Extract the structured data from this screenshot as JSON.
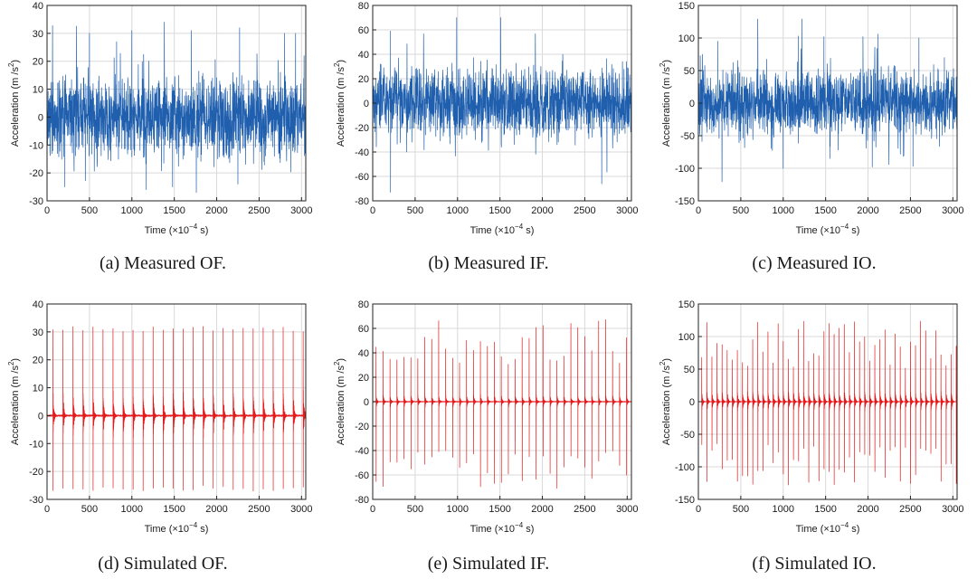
{
  "charts_meta": {
    "xlabel": "Time",
    "xunit_prefix": "(×10",
    "xunit_exp": "−4",
    "xunit_suffix": " s)",
    "ylabel_main": "Acceleration  (m /s",
    "ylabel_sup": "2",
    "ylabel_end": ")",
    "colors": {
      "measured": "#1f5fae",
      "simulated": "#e41a1c",
      "grid": "#d9d9d9",
      "axis": "#222222"
    }
  },
  "chart_data": [
    {
      "type": "line",
      "id": "measured-of",
      "title": "(a) Measured OF.",
      "series": [
        {
          "name": "Measured OF",
          "signal": "random-vibration",
          "envelope": 10,
          "spikes": [
            {
              "x": 500,
              "y": 30
            },
            {
              "x": 820,
              "y": 27
            },
            {
              "x": 1000,
              "y": 31
            },
            {
              "x": 1170,
              "y": -26
            },
            {
              "x": 1700,
              "y": 31
            },
            {
              "x": 1760,
              "y": -27
            },
            {
              "x": 2270,
              "y": 32
            },
            {
              "x": 2800,
              "y": 30
            },
            {
              "x": 2930,
              "y": 30
            },
            {
              "x": 3030,
              "y": 22
            },
            {
              "x": 210,
              "y": -25
            },
            {
              "x": 1480,
              "y": -25
            },
            {
              "x": 2250,
              "y": -24
            }
          ]
        }
      ],
      "xlim": [
        0,
        3050
      ],
      "ylim": [
        -30,
        40
      ],
      "xticks": [
        0,
        500,
        1000,
        1500,
        2000,
        2500,
        3000
      ],
      "yticks": [
        -30,
        -20,
        -10,
        0,
        10,
        20,
        30,
        40
      ]
    },
    {
      "type": "line",
      "id": "measured-if",
      "title": "(b) Measured IF.",
      "series": [
        {
          "name": "Measured IF",
          "signal": "random-vibration",
          "envelope": 20,
          "spikes": [
            {
              "x": 210,
              "y": 59
            },
            {
              "x": 210,
              "y": -73
            },
            {
              "x": 990,
              "y": 70
            },
            {
              "x": 1510,
              "y": 70
            },
            {
              "x": 2700,
              "y": -66
            },
            {
              "x": 400,
              "y": -40
            },
            {
              "x": 2990,
              "y": 34
            }
          ]
        }
      ],
      "xlim": [
        0,
        3050
      ],
      "ylim": [
        -80,
        80
      ],
      "xticks": [
        0,
        500,
        1000,
        1500,
        2000,
        2500,
        3000
      ],
      "yticks": [
        -80,
        -60,
        -40,
        -20,
        0,
        20,
        40,
        60,
        80
      ]
    },
    {
      "type": "line",
      "id": "measured-io",
      "title": "(c) Measured IO.",
      "series": [
        {
          "name": "Measured IO",
          "signal": "random-vibration",
          "envelope": 35,
          "spikes": [
            {
              "x": 700,
              "y": 129
            },
            {
              "x": 1220,
              "y": 129
            },
            {
              "x": 1480,
              "y": 102
            },
            {
              "x": 2600,
              "y": 100
            },
            {
              "x": 1000,
              "y": -100
            },
            {
              "x": 2050,
              "y": -98
            },
            {
              "x": 2530,
              "y": -97
            },
            {
              "x": 230,
              "y": 95
            },
            {
              "x": 1180,
              "y": 103
            },
            {
              "x": 1940,
              "y": 102
            },
            {
              "x": 1550,
              "y": -85
            },
            {
              "x": 2900,
              "y": 70
            }
          ]
        }
      ],
      "xlim": [
        0,
        3050
      ],
      "ylim": [
        -150,
        150
      ],
      "xticks": [
        0,
        500,
        1000,
        1500,
        2000,
        2500,
        3000
      ],
      "yticks": [
        -150,
        -100,
        -50,
        0,
        50,
        100,
        150
      ]
    },
    {
      "type": "line",
      "id": "simulated-of",
      "title": "(d) Simulated OF.",
      "series": [
        {
          "name": "Simulated OF",
          "signal": "periodic-impulses",
          "period": 118,
          "start": 70,
          "peak_pos": [
            30,
            32
          ],
          "peak_neg": [
            -25,
            -27
          ],
          "ring": 8
        }
      ],
      "xlim": [
        0,
        3050
      ],
      "ylim": [
        -30,
        40
      ],
      "xticks": [
        0,
        500,
        1000,
        1500,
        2000,
        2500,
        3000
      ],
      "yticks": [
        -30,
        -20,
        -10,
        0,
        10,
        20,
        30,
        40
      ]
    },
    {
      "type": "line",
      "id": "simulated-if",
      "title": "(e) Simulated IF.",
      "series": [
        {
          "name": "Simulated IF",
          "signal": "periodic-impulses",
          "period": 82,
          "start": 40,
          "peak_pos": [
            30,
            68
          ],
          "peak_neg": [
            -40,
            -72
          ],
          "ring": 5
        }
      ],
      "xlim": [
        0,
        3050
      ],
      "ylim": [
        -80,
        80
      ],
      "xticks": [
        0,
        500,
        1000,
        1500,
        2000,
        2500,
        3000
      ],
      "yticks": [
        -80,
        -60,
        -40,
        -20,
        0,
        20,
        40,
        60,
        80
      ]
    },
    {
      "type": "line",
      "id": "simulated-io",
      "title": "(f) Simulated IO.",
      "series": [
        {
          "name": "Simulated IO",
          "signal": "periodic-impulses",
          "period": 60,
          "start": 40,
          "peak_pos": [
            50,
            125
          ],
          "peak_neg": [
            -60,
            -130
          ],
          "ring": 15
        }
      ],
      "xlim": [
        0,
        3050
      ],
      "ylim": [
        -150,
        150
      ],
      "xticks": [
        0,
        500,
        1000,
        1500,
        2000,
        2500,
        3000
      ],
      "yticks": [
        -150,
        -100,
        -50,
        0,
        50,
        100,
        150
      ]
    }
  ]
}
